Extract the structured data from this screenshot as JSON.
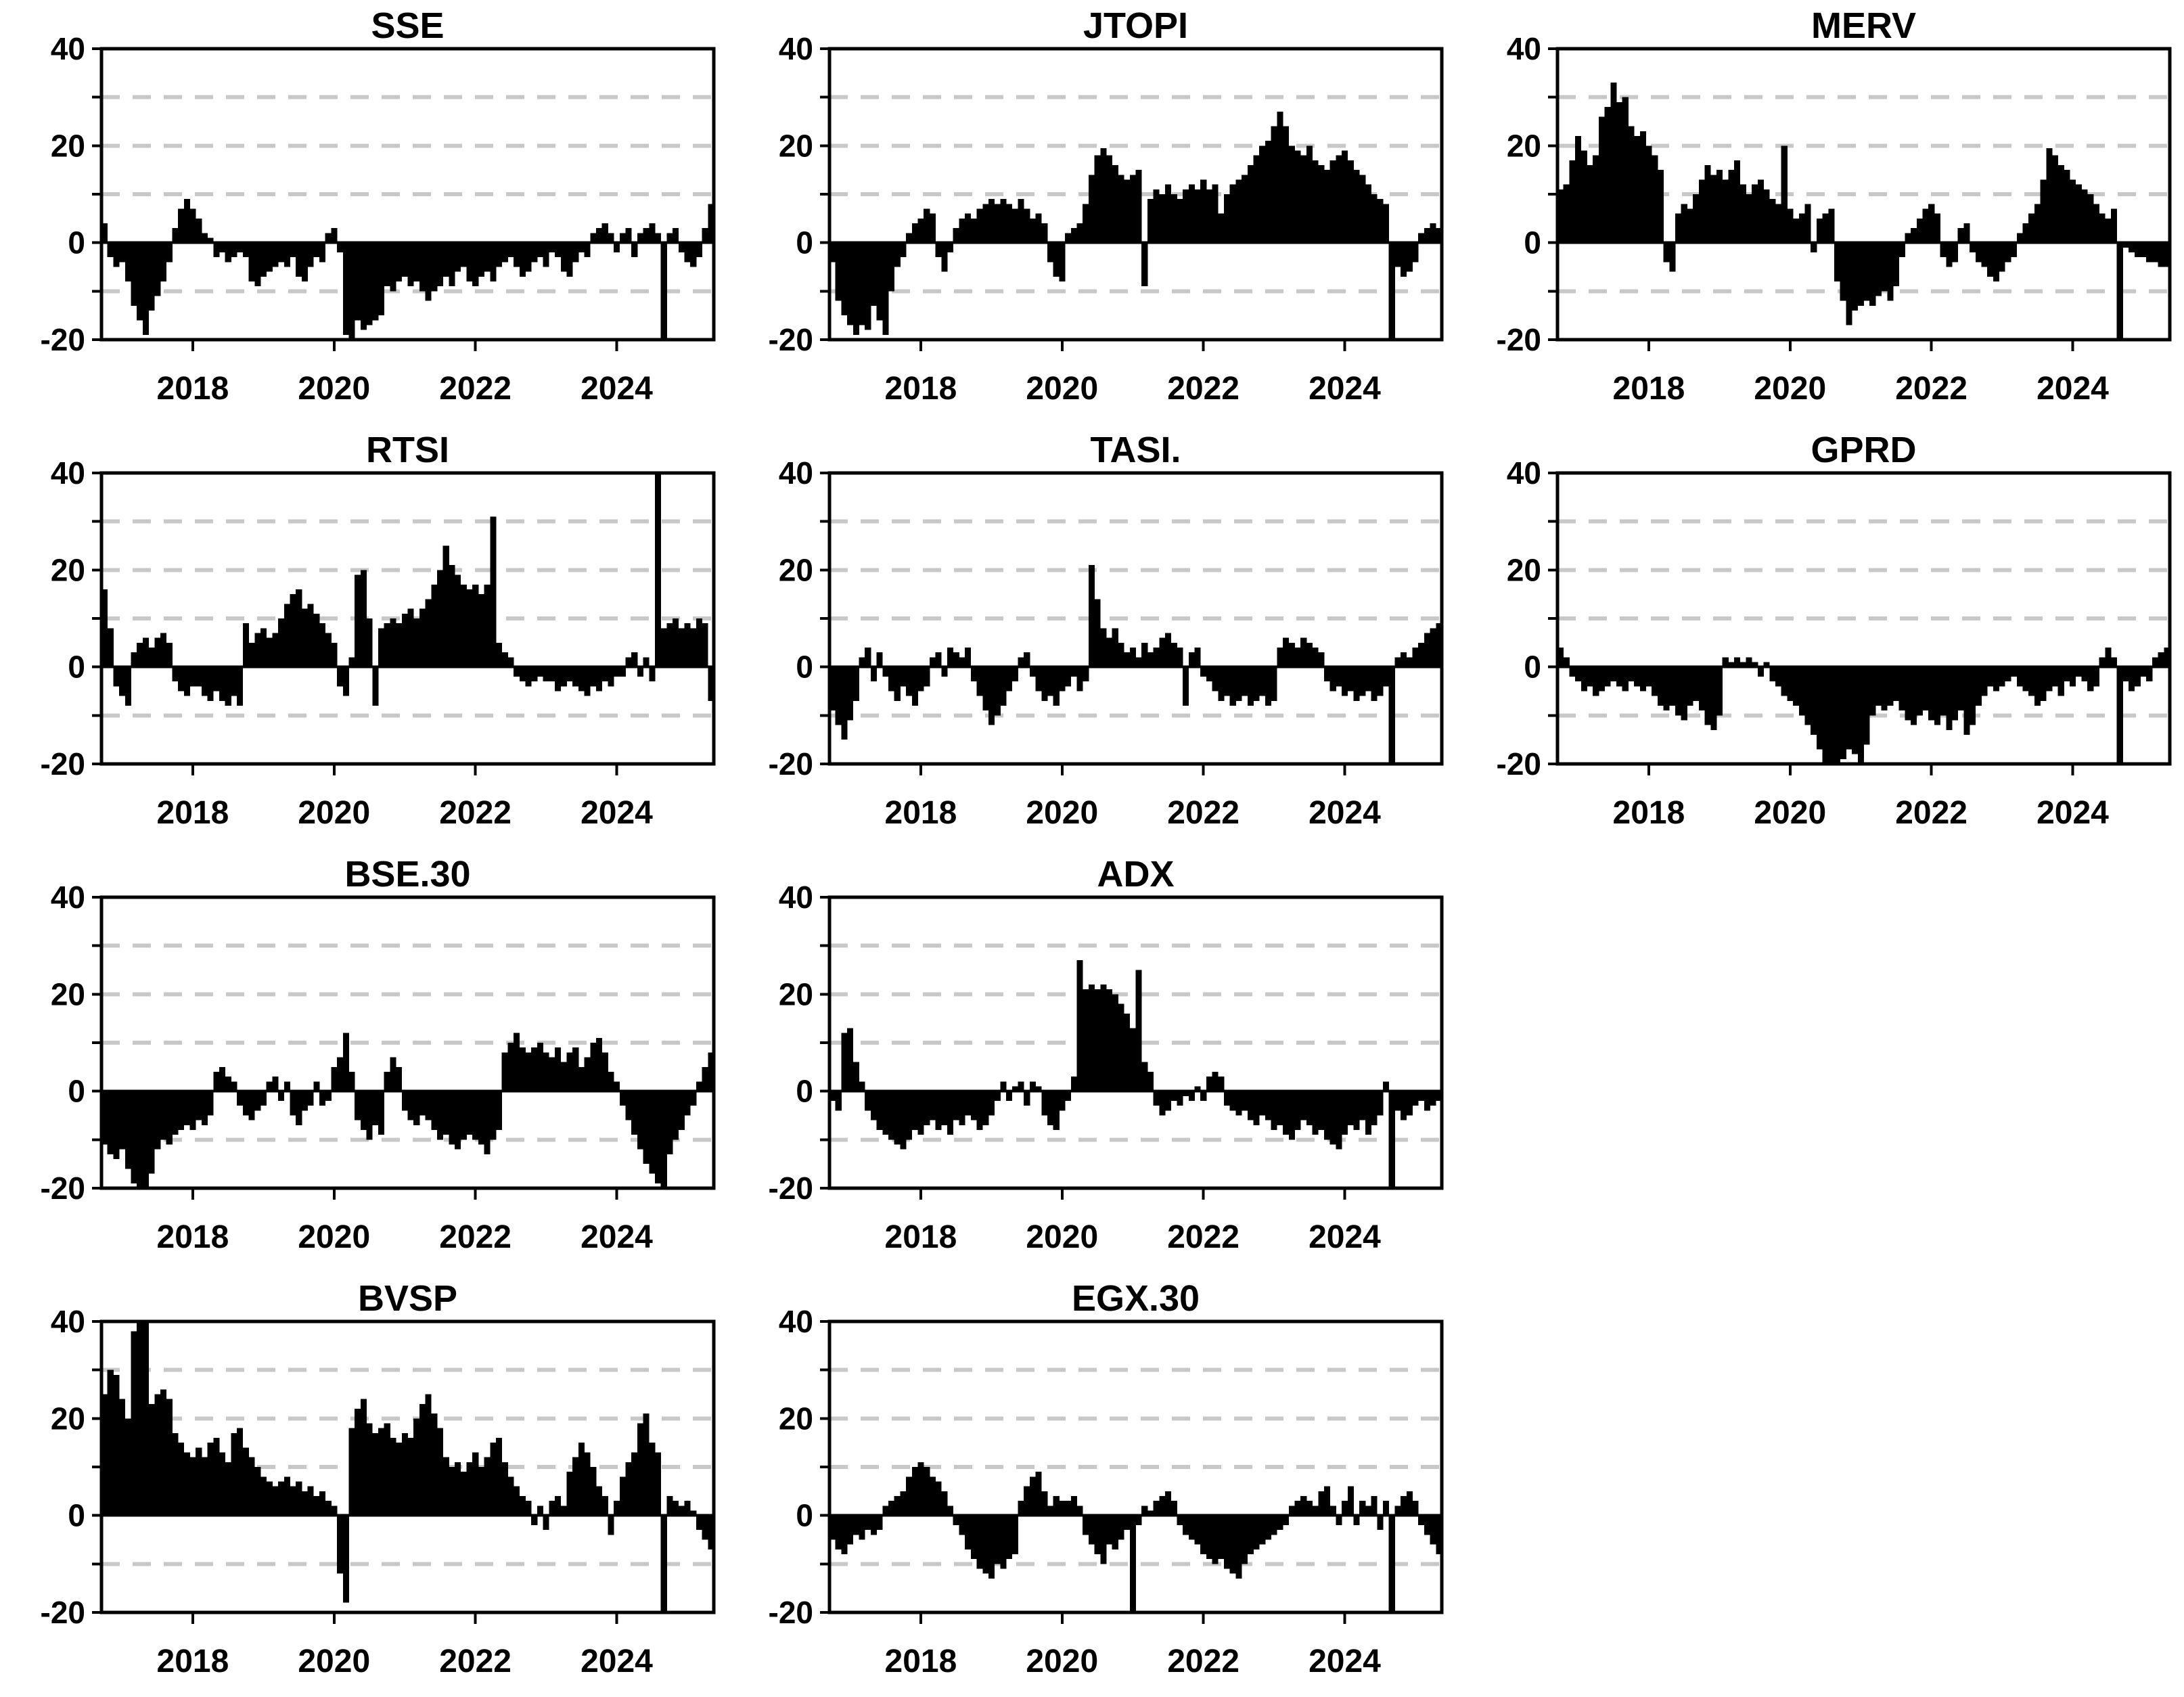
{
  "page": {
    "background": "#ffffff"
  },
  "style": {
    "bar_color": "#000000",
    "axis_color": "#000000",
    "zero_line_color": "#000000",
    "grid_color": "#c8c8c8",
    "text_color": "#000000"
  },
  "axis": {
    "ylim": [
      -20,
      40
    ],
    "y_tick_labels": [
      "40",
      "20",
      "0",
      "-20"
    ],
    "y_tick_values": [
      40,
      20,
      0,
      -20
    ],
    "y_gridlines_dashed": [
      30,
      20,
      10,
      -10
    ],
    "x_tick_labels": [
      "2018",
      "2020",
      "2022",
      "2024"
    ],
    "x_tick_values": [
      2018,
      2020,
      2022,
      2024
    ],
    "x_start_decimal_year": 2016.708,
    "x_step_years": 0.083333,
    "n_points": 104,
    "grid_on": true,
    "legend": "none",
    "off_scale_sentinel_abs": 60,
    "clip_note": "values beyond ylim are clipped at panel edge; +/-60 encodes the thin full-height spike bars visible near 2024.6 (and 2021.0 in EGX.30)"
  },
  "chart_data": [
    {
      "type": "bar",
      "title": "SSE",
      "grid": {
        "row": 0,
        "col": 0
      },
      "values": [
        4,
        -3,
        -5,
        -4,
        -8,
        -13,
        -16,
        -19,
        -14,
        -11,
        -8,
        -4,
        3,
        7,
        9,
        7,
        5,
        2,
        1,
        -3,
        -2,
        -4,
        -3,
        -2,
        -3,
        -8,
        -9,
        -7,
        -6,
        -5,
        -4,
        -5,
        -3,
        -7,
        -8,
        -5,
        -3,
        -4,
        2,
        3,
        -2,
        -19,
        -21,
        -16,
        -18,
        -17,
        -16,
        -15,
        -9,
        -10,
        -8,
        -7,
        -9,
        -8,
        -10,
        -12,
        -10,
        -9,
        -7,
        -9,
        -6,
        -5,
        -8,
        -9,
        -7,
        -6,
        -8,
        -5,
        -4,
        -3,
        -5,
        -7,
        -6,
        -4,
        -3,
        -5,
        -2,
        -3,
        -6,
        -7,
        -4,
        -2,
        -3,
        2,
        3,
        4,
        2,
        -2,
        2,
        3,
        -3,
        2,
        3,
        4,
        2,
        -60,
        2,
        3,
        -2,
        -4,
        -5,
        -3,
        3,
        8
      ]
    },
    {
      "type": "bar",
      "title": "JTOPI",
      "grid": {
        "row": 0,
        "col": 1
      },
      "values": [
        -4,
        -12,
        -15,
        -17,
        -19,
        -17,
        -18,
        -13,
        -16,
        -19,
        -10,
        -5,
        -3,
        2,
        4,
        5,
        7,
        6,
        -3,
        -6,
        -2,
        3,
        5,
        6,
        5,
        7,
        8,
        9,
        8,
        9,
        8,
        7,
        9,
        7,
        5,
        6,
        4,
        -4,
        -7,
        -8,
        2,
        3,
        4,
        8,
        14,
        18,
        19.5,
        18,
        16,
        14,
        13,
        14,
        15,
        -9,
        9,
        11,
        10,
        12,
        10,
        9,
        11,
        12,
        11,
        13,
        11,
        12,
        6,
        10,
        12,
        13,
        14,
        16,
        18,
        20,
        21,
        24,
        27,
        24,
        20,
        19,
        18,
        20,
        17,
        16,
        15,
        17,
        18,
        19,
        17,
        15,
        14,
        12,
        10,
        9,
        8,
        -60,
        -5,
        -7,
        -6,
        -4,
        2,
        3,
        4,
        3
      ]
    },
    {
      "type": "bar",
      "title": "MERV",
      "grid": {
        "row": 0,
        "col": 2
      },
      "values": [
        11,
        12,
        17,
        22,
        19,
        16,
        18,
        26,
        28,
        33,
        29,
        30,
        24,
        22,
        23,
        20,
        18,
        15,
        -4,
        -6,
        6,
        8,
        7,
        10,
        13,
        16,
        14,
        15,
        13,
        15,
        17,
        12,
        10,
        12,
        13,
        11,
        9,
        8,
        20,
        7,
        5,
        6,
        8,
        -2,
        5,
        6,
        7,
        -8,
        -12,
        -17,
        -14,
        -13,
        -12,
        -13,
        -11,
        -10,
        -12,
        -9,
        -3,
        2,
        3,
        5,
        7,
        8,
        6,
        -3,
        -5,
        -4,
        3,
        4,
        -2,
        -4,
        -5,
        -7,
        -8,
        -6,
        -4,
        -3,
        2,
        4,
        6,
        8,
        13,
        19.5,
        18,
        16,
        15,
        13,
        12,
        11,
        10,
        8,
        6,
        5,
        7,
        -60,
        -1,
        -2,
        -3,
        -3,
        -4,
        -4,
        -5,
        -5
      ]
    },
    {
      "type": "bar",
      "title": "RTSI",
      "grid": {
        "row": 1,
        "col": 0
      },
      "values": [
        16,
        8,
        -4,
        -6,
        -8,
        3,
        5,
        6,
        4,
        6,
        7,
        5,
        -3,
        -5,
        -6,
        -4,
        -4,
        -6,
        -7,
        -5,
        -7,
        -8,
        -6,
        -8,
        9,
        5,
        7,
        8,
        6,
        7,
        10,
        13,
        15,
        16,
        12,
        13,
        11,
        9,
        7,
        5,
        -4,
        -6,
        2,
        19,
        20,
        10,
        -8,
        8,
        9,
        10,
        9,
        11,
        12,
        10,
        12,
        14,
        17,
        20,
        25,
        21,
        19,
        17,
        16,
        17,
        15,
        17,
        31,
        5,
        3,
        2,
        -2,
        -3,
        -4,
        -3,
        -2,
        -3,
        -3,
        -5,
        -4,
        -3,
        -4,
        -5,
        -6,
        -4,
        -5,
        -3,
        -4,
        -2,
        -2,
        2,
        3,
        -2,
        2,
        -3,
        60,
        8,
        9,
        10,
        8,
        9,
        8,
        10,
        9,
        -7
      ]
    },
    {
      "type": "bar",
      "title": "TASI.",
      "grid": {
        "row": 1,
        "col": 1
      },
      "values": [
        -9,
        -12,
        -15,
        -11,
        -7,
        2,
        4,
        -3,
        3,
        -2,
        -5,
        -7,
        -4,
        -6,
        -8,
        -5,
        -4,
        2,
        3,
        -2,
        4,
        3,
        2,
        4,
        -3,
        -6,
        -9,
        -12,
        -10,
        -8,
        -5,
        -3,
        2,
        3,
        -2,
        -5,
        -7,
        -6,
        -8,
        -5,
        -4,
        -2,
        -5,
        -3,
        21,
        14,
        8,
        6,
        8,
        5,
        3,
        4,
        2,
        5,
        3,
        4,
        6,
        7,
        5,
        4,
        -8,
        3,
        4,
        -2,
        -3,
        -5,
        -7,
        -6,
        -8,
        -7,
        -6,
        -8,
        -7,
        -6,
        -8,
        -7,
        4,
        6,
        5,
        4,
        6,
        5,
        4,
        3,
        -3,
        -5,
        -4,
        -6,
        -5,
        -7,
        -6,
        -5,
        -7,
        -6,
        -4,
        -60,
        2,
        3,
        2,
        4,
        5,
        7,
        8,
        9
      ]
    },
    {
      "type": "bar",
      "title": "GPRD",
      "grid": {
        "row": 1,
        "col": 2
      },
      "values": [
        4,
        2,
        -2,
        -3,
        -5,
        -4,
        -6,
        -5,
        -4,
        -3,
        -4,
        -5,
        -3,
        -4,
        -5,
        -4,
        -6,
        -8,
        -9,
        -8,
        -10,
        -11,
        -8,
        -7,
        -9,
        -12,
        -13,
        -10,
        2,
        1,
        2,
        1,
        2,
        1,
        -2,
        1,
        -3,
        -4,
        -6,
        -7,
        -8,
        -10,
        -12,
        -14,
        -17,
        -20,
        -21,
        -20,
        -19,
        -17,
        -18,
        -21,
        -16,
        -10,
        -8,
        -9,
        -8,
        -7,
        -9,
        -11,
        -12,
        -10,
        -9,
        -11,
        -12,
        -10,
        -13,
        -11,
        -9,
        -14,
        -12,
        -8,
        -6,
        -4,
        -5,
        -4,
        -3,
        -2,
        -4,
        -5,
        -6,
        -8,
        -7,
        -5,
        -4,
        -6,
        -3,
        -4,
        -2,
        -3,
        -5,
        -4,
        2,
        4,
        2,
        -60,
        -3,
        -5,
        -4,
        -2,
        -3,
        2,
        3,
        4
      ]
    },
    {
      "type": "bar",
      "title": "BSE.30",
      "grid": {
        "row": 2,
        "col": 0
      },
      "values": [
        -11,
        -13,
        -14,
        -12,
        -16,
        -19,
        -21,
        -20,
        -17,
        -12,
        -10,
        -11,
        -9,
        -8,
        -7,
        -8,
        -6,
        -7,
        -5,
        4,
        5,
        3,
        2,
        -3,
        -5,
        -6,
        -4,
        -3,
        2,
        3,
        -2,
        2,
        -5,
        -7,
        -4,
        -3,
        2,
        -3,
        -2,
        5,
        7,
        12,
        4,
        -6,
        -8,
        -10,
        -7,
        -9,
        4,
        7,
        5,
        -4,
        -6,
        -7,
        -5,
        -6,
        -8,
        -10,
        -9,
        -11,
        -12,
        -10,
        -9,
        -10,
        -11,
        -13,
        -10,
        -8,
        8,
        10,
        12,
        9,
        8,
        9,
        10,
        8,
        7,
        9,
        6,
        8,
        9,
        5,
        7,
        10,
        11,
        8,
        4,
        2,
        -3,
        -6,
        -9,
        -12,
        -15,
        -17,
        -19,
        -60,
        -13,
        -10,
        -8,
        -5,
        -3,
        2,
        5,
        8
      ]
    },
    {
      "type": "bar",
      "title": "ADX",
      "grid": {
        "row": 2,
        "col": 1
      },
      "values": [
        -2,
        -4,
        12,
        13,
        6,
        2,
        -4,
        -6,
        -8,
        -9,
        -10,
        -11,
        -12,
        -10,
        -8,
        -9,
        -7,
        -6,
        -8,
        -7,
        -9,
        -6,
        -7,
        -5,
        -6,
        -8,
        -7,
        -5,
        -2,
        2,
        -2,
        1,
        2,
        -3,
        2,
        1,
        -5,
        -7,
        -8,
        -4,
        -2,
        3,
        27,
        21,
        22,
        21,
        22,
        21,
        20,
        18,
        16,
        13,
        25,
        6,
        4,
        -3,
        -5,
        -4,
        -2,
        -3,
        -1,
        -2,
        1,
        -2,
        3,
        4,
        3,
        -3,
        -4,
        -5,
        -4,
        -6,
        -7,
        -5,
        -6,
        -8,
        -7,
        -9,
        -10,
        -8,
        -6,
        -7,
        -9,
        -8,
        -10,
        -11,
        -12,
        -9,
        -7,
        -8,
        -6,
        -9,
        -7,
        -5,
        2,
        -60,
        -4,
        -6,
        -5,
        -3,
        -2,
        -4,
        -3,
        -2
      ]
    },
    {
      "type": "bar",
      "title": "BVSP",
      "grid": {
        "row": 3,
        "col": 0
      },
      "values": [
        25,
        30,
        29,
        24,
        20,
        38,
        40,
        42,
        23,
        25,
        26,
        24,
        17,
        15,
        13,
        12,
        14,
        12,
        15,
        16,
        13,
        11,
        17,
        18,
        14,
        12,
        10,
        8,
        7,
        6,
        7,
        8,
        6,
        7,
        5,
        6,
        4,
        5,
        3,
        2,
        -12,
        -18,
        18,
        22,
        24,
        19,
        17,
        18,
        19,
        16,
        15,
        17,
        16,
        20,
        23,
        25,
        21,
        18,
        12,
        10,
        11,
        9,
        11,
        13,
        10,
        12,
        15,
        16,
        11,
        8,
        6,
        4,
        3,
        -2,
        2,
        -3,
        3,
        4,
        2,
        9,
        12,
        15,
        13,
        10,
        6,
        4,
        -4,
        3,
        8,
        11,
        13,
        19,
        21,
        15,
        13,
        -60,
        4,
        3,
        2,
        3,
        1,
        -3,
        -5,
        -7
      ]
    },
    {
      "type": "bar",
      "title": "EGX.30",
      "grid": {
        "row": 3,
        "col": 1
      },
      "values": [
        -5,
        -7,
        -8,
        -6,
        -4,
        -5,
        -3,
        -4,
        -3,
        2,
        3,
        4,
        5,
        8,
        10,
        11,
        10,
        8,
        7,
        5,
        2,
        -2,
        -4,
        -7,
        -9,
        -11,
        -12,
        -13,
        -10,
        -11,
        -9,
        -8,
        3,
        6,
        8,
        9,
        5,
        2,
        4,
        3,
        3,
        4,
        2,
        -4,
        -6,
        -8,
        -10,
        -6,
        -7,
        -5,
        -3,
        -60,
        -2,
        2,
        1,
        3,
        4,
        5,
        3,
        -2,
        -4,
        -5,
        -6,
        -8,
        -9,
        -10,
        -9,
        -11,
        -12,
        -13,
        -10,
        -8,
        -7,
        -6,
        -5,
        -4,
        -3,
        -2,
        2,
        3,
        4,
        3,
        2,
        5,
        6,
        2,
        -2,
        3,
        6,
        -2,
        3,
        2,
        4,
        -3,
        3,
        -60,
        2,
        4,
        5,
        3,
        -2,
        -4,
        -6,
        -8
      ]
    }
  ]
}
